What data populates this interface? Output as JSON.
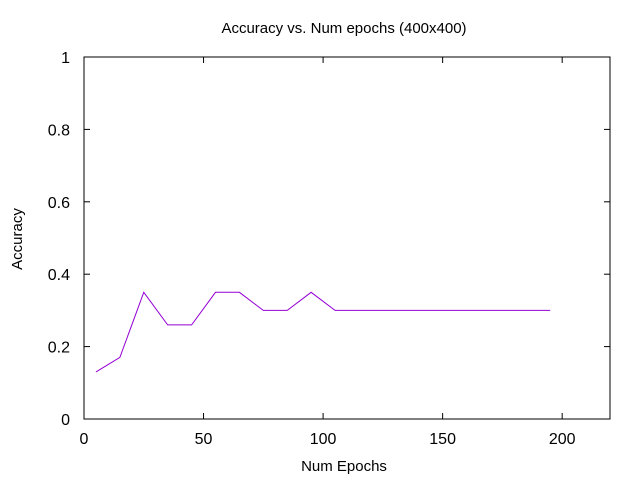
{
  "chart_data": {
    "type": "line",
    "title": "Accuracy vs. Num epochs (400x400)",
    "xlabel": "Num Epochs",
    "ylabel": "Accuracy",
    "xlim": [
      0,
      220
    ],
    "ylim": [
      0,
      1
    ],
    "xticks": [
      0,
      50,
      100,
      150,
      200
    ],
    "yticks": [
      0,
      0.2,
      0.4,
      0.6,
      0.8,
      1
    ],
    "xtick_labels": [
      "0",
      "50",
      "100",
      "150",
      "200"
    ],
    "ytick_labels": [
      "0",
      "0.2",
      "0.4",
      "0.6",
      "0.8",
      "1"
    ],
    "grid": false,
    "legend": "none",
    "series": [
      {
        "color": "#9400d3",
        "x": [
          5,
          15,
          25,
          35,
          45,
          55,
          65,
          75,
          85,
          95,
          105,
          115,
          125,
          135,
          145,
          155,
          165,
          175,
          185,
          195
        ],
        "y": [
          0.13,
          0.17,
          0.35,
          0.26,
          0.26,
          0.35,
          0.35,
          0.3,
          0.3,
          0.35,
          0.3,
          0.3,
          0.3,
          0.3,
          0.3,
          0.3,
          0.3,
          0.3,
          0.3,
          0.3
        ]
      }
    ]
  }
}
